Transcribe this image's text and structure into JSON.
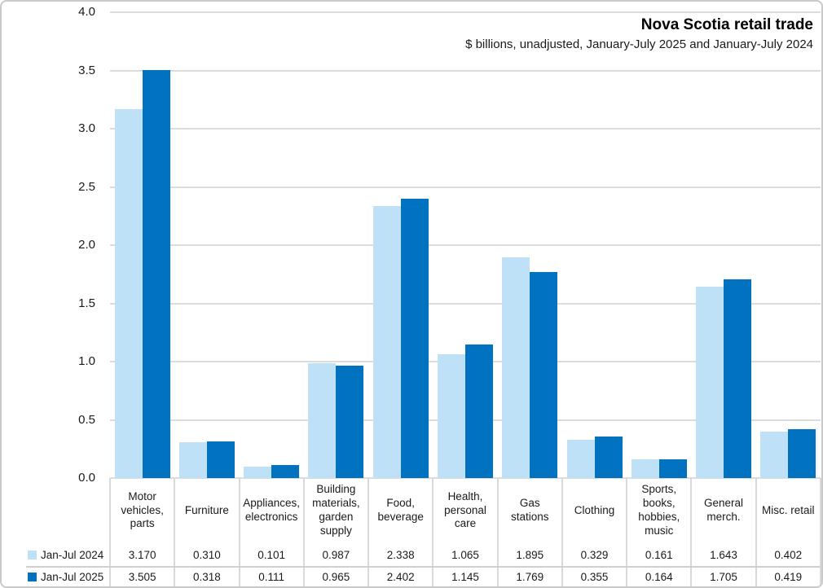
{
  "chart_data": {
    "type": "bar",
    "title": "Nova Scotia retail trade",
    "subtitle": "$ billions, unadjusted, January-July 2025 and January-July 2024",
    "categories": [
      "Motor vehicles, parts",
      "Furniture",
      "Appliances, electronics",
      "Building materials, garden supply",
      "Food, beverage",
      "Health, personal care",
      "Gas stations",
      "Clothing",
      "Sports, books, hobbies, music",
      "General merch.",
      "Misc. retail"
    ],
    "series": [
      {
        "name": "Jan-Jul 2024",
        "color": "#BFE1F8",
        "values": [
          3.17,
          0.31,
          0.101,
          0.987,
          2.338,
          1.065,
          1.895,
          0.329,
          0.161,
          1.643,
          0.402
        ]
      },
      {
        "name": "Jan-Jul 2025",
        "color": "#0072C0",
        "values": [
          3.505,
          0.318,
          0.111,
          0.965,
          2.402,
          1.145,
          1.769,
          0.355,
          0.164,
          1.705,
          0.419
        ]
      }
    ],
    "ylim": [
      0,
      4
    ],
    "yticks": [
      "0.0",
      "0.5",
      "1.0",
      "1.5",
      "2.0",
      "2.5",
      "3.0",
      "3.5",
      "4.0"
    ],
    "grid": "horizontal",
    "legend_position": "bottom-left-table",
    "value_decimals": 3,
    "colors": {
      "gridline": "#DCDCDC",
      "table_line": "#CFCFCF",
      "text": "#1A1A1A"
    }
  }
}
